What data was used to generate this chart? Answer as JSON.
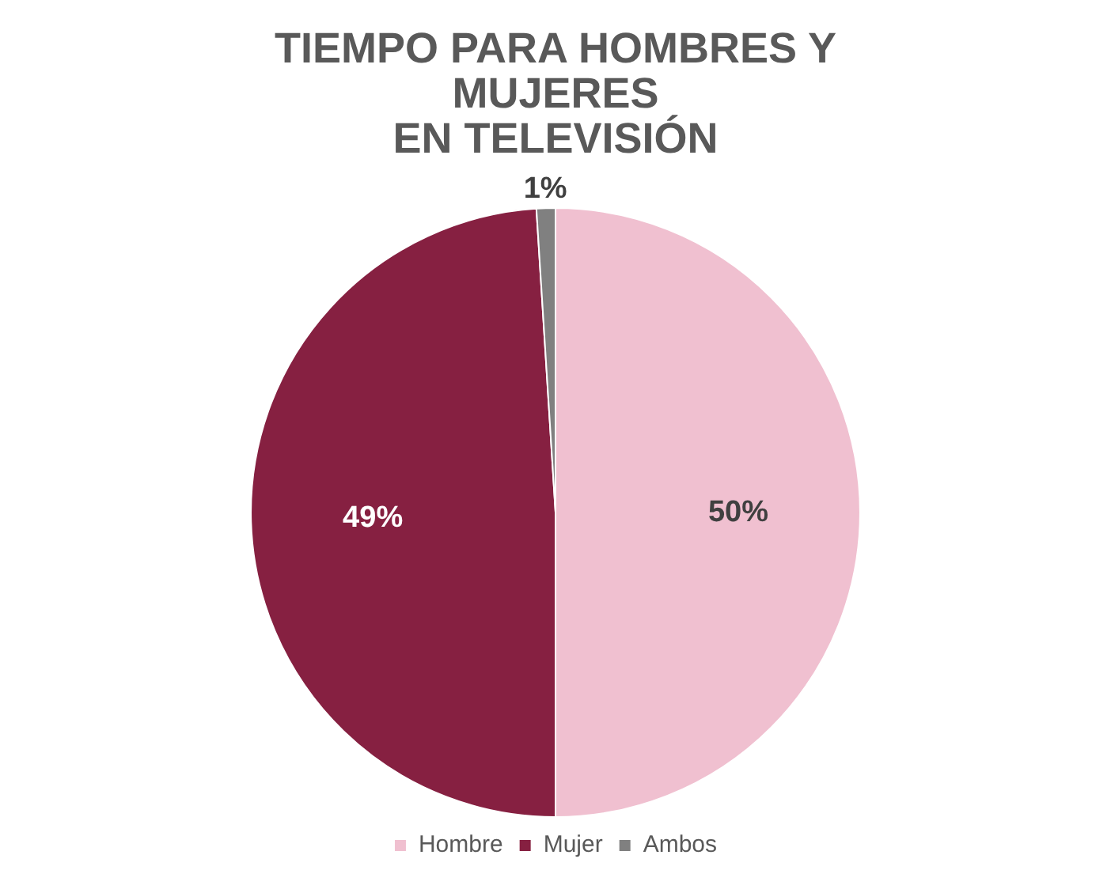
{
  "chart_data": {
    "type": "pie",
    "title": "TIEMPO PARA HOMBRES Y\nMUJERES\nEN TELEVISIÓN",
    "categories": [
      "Hombre",
      "Mujer",
      "Ambos"
    ],
    "values": [
      50,
      49,
      1
    ],
    "colors": [
      "#f0c0d0",
      "#862041",
      "#808080"
    ],
    "value_labels": [
      "50%",
      "49%",
      "1%"
    ],
    "legend": "bottom"
  }
}
